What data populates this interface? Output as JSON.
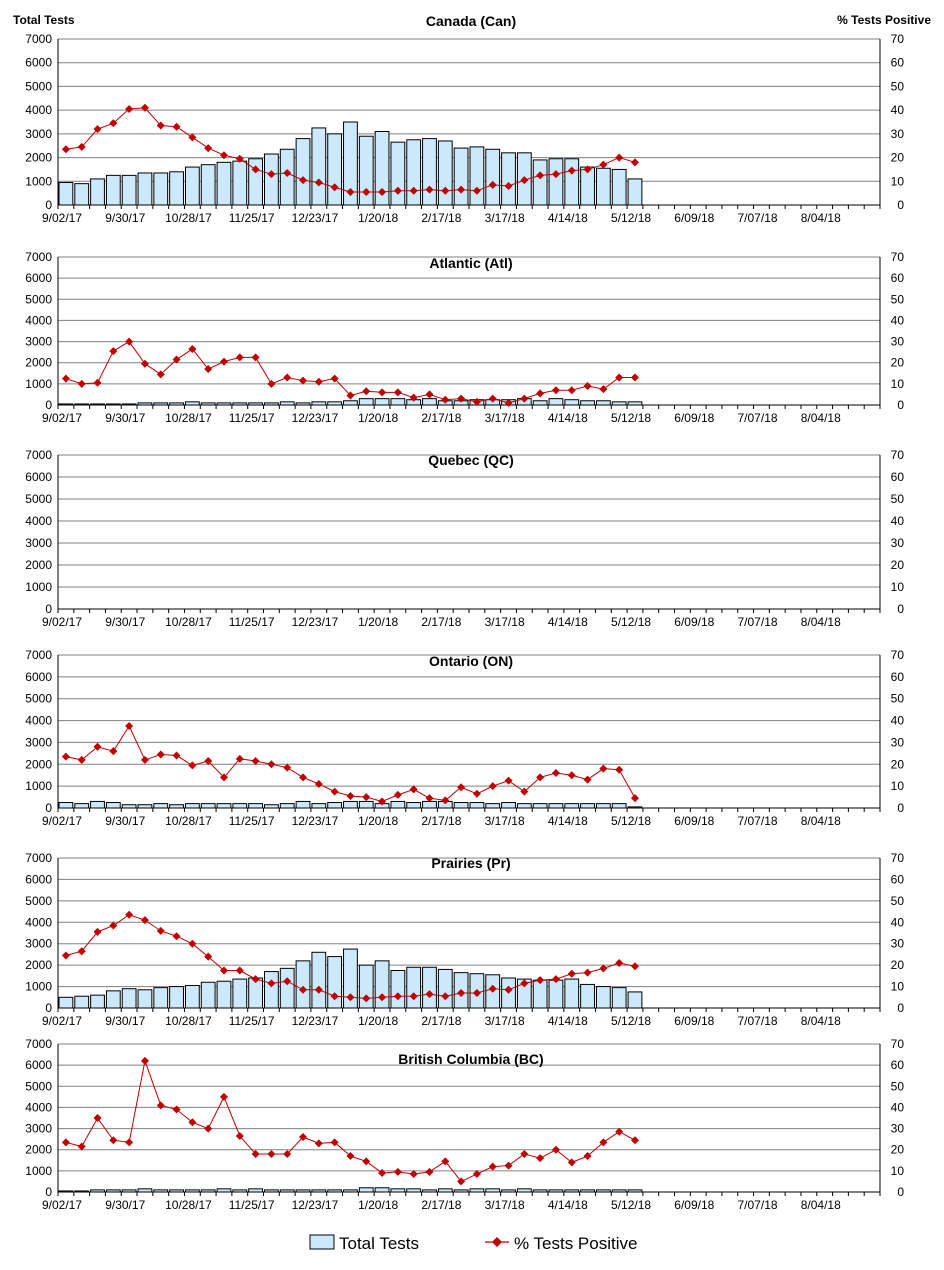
{
  "chart_data": {
    "type": "bar+line",
    "left_axis_label": "Total Tests",
    "right_axis_label": "% Tests Positive",
    "left_ylim": [
      0,
      7000
    ],
    "right_ylim": [
      0,
      70
    ],
    "left_ticks": [
      "0",
      "1000",
      "2000",
      "3000",
      "4000",
      "5000",
      "6000",
      "7000"
    ],
    "right_ticks": [
      "0",
      "10",
      "20",
      "30",
      "40",
      "50",
      "60",
      "70"
    ],
    "x_tick_labels": [
      "9/02/17",
      "9/30/17",
      "10/28/17",
      "11/25/17",
      "12/23/17",
      "1/20/18",
      "2/17/18",
      "3/17/18",
      "4/14/18",
      "5/12/18",
      "6/09/18",
      "7/07/18",
      "8/04/18"
    ],
    "weeks_total": 52,
    "grid": true,
    "legend": {
      "position": "bottom",
      "entries": [
        "Total Tests",
        "% Tests Positive"
      ]
    },
    "colors": {
      "bar_fill": "#cce9fb",
      "bar_stroke": "#000000",
      "line": "#c00000",
      "grid": "#808080"
    },
    "panels": [
      {
        "title": "Canada (Can)",
        "total_tests": [
          950,
          900,
          1100,
          1250,
          1250,
          1350,
          1350,
          1400,
          1600,
          1700,
          1800,
          1850,
          1950,
          2150,
          2350,
          2800,
          3250,
          3000,
          3500,
          2900,
          3100,
          2650,
          2750,
          2800,
          2700,
          2400,
          2450,
          2350,
          2200,
          2200,
          1900,
          1950,
          1950,
          1600,
          1550,
          1500,
          1100
        ],
        "pct_positive": [
          23.5,
          24.5,
          32,
          34.5,
          40.5,
          41,
          33.5,
          33,
          28.5,
          24,
          21,
          19.5,
          15,
          13,
          13.5,
          10.5,
          9.5,
          7.5,
          5.5,
          5.5,
          5.5,
          6,
          6,
          6.5,
          6,
          6.5,
          6,
          8.5,
          8,
          10.5,
          12.5,
          13,
          14.5,
          15,
          17,
          20,
          18
        ]
      },
      {
        "title": "Atlantic (Atl)",
        "total_tests": [
          50,
          50,
          50,
          50,
          50,
          100,
          100,
          100,
          150,
          100,
          100,
          100,
          100,
          100,
          150,
          100,
          150,
          150,
          200,
          300,
          300,
          300,
          250,
          300,
          200,
          200,
          250,
          250,
          250,
          300,
          200,
          300,
          250,
          200,
          200,
          150,
          150
        ],
        "pct_positive": [
          12.5,
          10,
          10.5,
          25.5,
          30,
          19.5,
          14.5,
          21.5,
          26.5,
          17,
          20.5,
          22.5,
          22.5,
          10,
          13,
          11.5,
          11,
          12.5,
          4.5,
          6.5,
          6,
          6,
          3.5,
          5,
          2.5,
          3,
          1.5,
          3,
          1,
          3,
          5.5,
          7,
          7,
          9,
          7.5,
          13,
          13
        ]
      },
      {
        "title": "Quebec (QC)",
        "total_tests": [],
        "pct_positive": []
      },
      {
        "title": "Ontario (ON)",
        "total_tests": [
          250,
          200,
          300,
          250,
          150,
          150,
          200,
          150,
          200,
          200,
          200,
          200,
          200,
          150,
          200,
          300,
          200,
          250,
          300,
          300,
          200,
          300,
          250,
          300,
          300,
          250,
          250,
          200,
          250,
          200,
          200,
          200,
          200,
          200,
          200,
          200,
          50
        ],
        "pct_positive": [
          23.5,
          22,
          28,
          26,
          37.5,
          22,
          24.5,
          24,
          19.5,
          21.5,
          14,
          22.5,
          21.5,
          20,
          18.5,
          14,
          11,
          7.5,
          5.5,
          5,
          3,
          6,
          8.5,
          4.5,
          3.5,
          9.5,
          6.5,
          10,
          12.5,
          7.5,
          14,
          16,
          15,
          13,
          18,
          17.5,
          4.5
        ]
      },
      {
        "title": "Prairies (Pr)",
        "total_tests": [
          500,
          550,
          600,
          800,
          900,
          850,
          950,
          1000,
          1050,
          1200,
          1250,
          1350,
          1400,
          1700,
          1850,
          2200,
          2600,
          2400,
          2750,
          2000,
          2200,
          1750,
          1900,
          1900,
          1800,
          1650,
          1600,
          1550,
          1400,
          1350,
          1300,
          1300,
          1350,
          1100,
          1000,
          950,
          750
        ],
        "pct_positive": [
          24.5,
          26.5,
          35.5,
          38.5,
          43.5,
          41,
          36,
          33.5,
          30,
          24,
          17.5,
          17.5,
          13.5,
          11.5,
          12.5,
          8.5,
          8.5,
          5.5,
          5,
          4.5,
          5,
          5.5,
          5.5,
          6.5,
          5.5,
          7,
          7,
          9,
          8.5,
          11.5,
          13,
          13.5,
          16,
          16.5,
          18.5,
          21,
          19.5
        ]
      },
      {
        "title": "British Columbia (BC)",
        "total_tests": [
          50,
          50,
          100,
          100,
          100,
          150,
          100,
          100,
          100,
          100,
          150,
          100,
          150,
          100,
          100,
          100,
          100,
          100,
          100,
          200,
          200,
          150,
          150,
          100,
          150,
          100,
          150,
          150,
          100,
          150,
          100,
          100,
          100,
          100,
          100,
          100,
          100
        ],
        "pct_positive": [
          23.5,
          21.5,
          35,
          24.5,
          23.5,
          62,
          41,
          39,
          33,
          30,
          45,
          26.5,
          18,
          18,
          18,
          26,
          23,
          23.5,
          17,
          14.5,
          9,
          9.5,
          8.5,
          9.5,
          14.5,
          5,
          8.5,
          12,
          12.5,
          18,
          16,
          20,
          14,
          17,
          23.5,
          28.5,
          24.5
        ]
      }
    ]
  }
}
